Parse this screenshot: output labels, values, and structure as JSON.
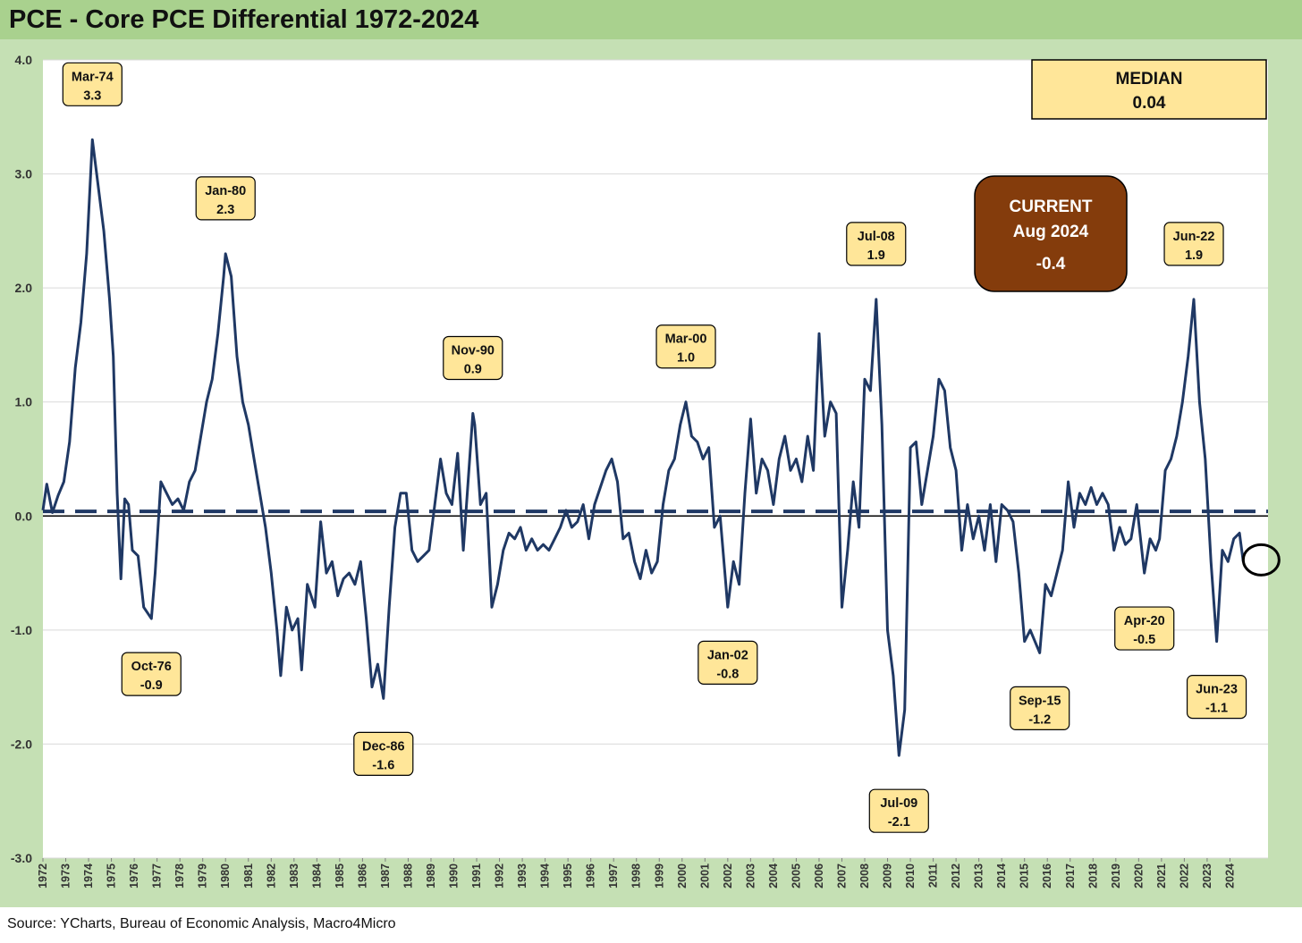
{
  "title": "PCE - Core PCE Differential 1972-2024",
  "source": "Source: YCharts, Bureau of Economic Analysis, Macro4Micro",
  "colors": {
    "series": "#1f3864",
    "title_band": "#a9d18e",
    "frame": "#c5e0b4",
    "callout_fill": "#ffe699",
    "current_fill": "#843c0c"
  },
  "median_box": {
    "label": "MEDIAN",
    "value": "0.04"
  },
  "current_box": {
    "label": "CURRENT",
    "period": "Aug 2024",
    "value": "-0.4"
  },
  "chart_data": {
    "type": "line",
    "title": "PCE - Core PCE Differential 1972-2024",
    "xlabel": "",
    "ylabel": "",
    "ylim": [
      -3.0,
      4.0
    ],
    "yticks": [
      "4.0",
      "3.0",
      "2.0",
      "1.0",
      "0.0",
      "-1.0",
      "-2.0",
      "-3.0"
    ],
    "xticks": [
      "1972",
      "1973",
      "1974",
      "1975",
      "1976",
      "1977",
      "1978",
      "1979",
      "1980",
      "1981",
      "1982",
      "1983",
      "1984",
      "1985",
      "1986",
      "1987",
      "1988",
      "1989",
      "1990",
      "1991",
      "1992",
      "1993",
      "1994",
      "1995",
      "1996",
      "1997",
      "1998",
      "1999",
      "2000",
      "2001",
      "2002",
      "2003",
      "2004",
      "2005",
      "2006",
      "2007",
      "2008",
      "2009",
      "2010",
      "2011",
      "2012",
      "2013",
      "2014",
      "2015",
      "2016",
      "2017",
      "2018",
      "2019",
      "2020",
      "2021",
      "2022",
      "2023",
      "2024"
    ],
    "grid": true,
    "median": 0.04,
    "series": [
      {
        "name": "",
        "points": [
          [
            "1972-01",
            0.05
          ],
          [
            "1972-03",
            0.28
          ],
          [
            "1972-06",
            0.03
          ],
          [
            "1972-09",
            0.18
          ],
          [
            "1972-12",
            0.3
          ],
          [
            "1973-03",
            0.65
          ],
          [
            "1973-06",
            1.3
          ],
          [
            "1973-09",
            1.7
          ],
          [
            "1973-12",
            2.3
          ],
          [
            "1974-03",
            3.3
          ],
          [
            "1974-06",
            2.9
          ],
          [
            "1974-09",
            2.5
          ],
          [
            "1974-12",
            1.9
          ],
          [
            "1975-02",
            1.4
          ],
          [
            "1975-04",
            0.2
          ],
          [
            "1975-06",
            -0.55
          ],
          [
            "1975-08",
            0.15
          ],
          [
            "1975-10",
            0.1
          ],
          [
            "1975-12",
            -0.3
          ],
          [
            "1976-03",
            -0.35
          ],
          [
            "1976-06",
            -0.8
          ],
          [
            "1976-10",
            -0.9
          ],
          [
            "1976-12",
            -0.5
          ],
          [
            "1977-03",
            0.3
          ],
          [
            "1977-06",
            0.2
          ],
          [
            "1977-09",
            0.1
          ],
          [
            "1977-12",
            0.15
          ],
          [
            "1978-03",
            0.05
          ],
          [
            "1978-06",
            0.3
          ],
          [
            "1978-09",
            0.4
          ],
          [
            "1978-12",
            0.7
          ],
          [
            "1979-03",
            1.0
          ],
          [
            "1979-06",
            1.2
          ],
          [
            "1979-09",
            1.6
          ],
          [
            "1979-12",
            2.1
          ],
          [
            "1980-01",
            2.3
          ],
          [
            "1980-04",
            2.1
          ],
          [
            "1980-07",
            1.4
          ],
          [
            "1980-10",
            1.0
          ],
          [
            "1981-01",
            0.8
          ],
          [
            "1981-04",
            0.5
          ],
          [
            "1981-07",
            0.2
          ],
          [
            "1981-10",
            -0.1
          ],
          [
            "1982-01",
            -0.5
          ],
          [
            "1982-04",
            -1.0
          ],
          [
            "1982-06",
            -1.4
          ],
          [
            "1982-09",
            -0.8
          ],
          [
            "1982-12",
            -1.0
          ],
          [
            "1983-03",
            -0.9
          ],
          [
            "1983-05",
            -1.35
          ],
          [
            "1983-08",
            -0.6
          ],
          [
            "1983-12",
            -0.8
          ],
          [
            "1984-03",
            -0.05
          ],
          [
            "1984-06",
            -0.5
          ],
          [
            "1984-09",
            -0.4
          ],
          [
            "1984-12",
            -0.7
          ],
          [
            "1985-03",
            -0.55
          ],
          [
            "1985-06",
            -0.5
          ],
          [
            "1985-09",
            -0.6
          ],
          [
            "1985-12",
            -0.4
          ],
          [
            "1986-03",
            -0.9
          ],
          [
            "1986-06",
            -1.5
          ],
          [
            "1986-09",
            -1.3
          ],
          [
            "1986-12",
            -1.6
          ],
          [
            "1987-03",
            -0.8
          ],
          [
            "1987-06",
            -0.1
          ],
          [
            "1987-09",
            0.2
          ],
          [
            "1987-12",
            0.2
          ],
          [
            "1988-03",
            -0.3
          ],
          [
            "1988-06",
            -0.4
          ],
          [
            "1988-09",
            -0.35
          ],
          [
            "1988-12",
            -0.3
          ],
          [
            "1989-03",
            0.1
          ],
          [
            "1989-06",
            0.5
          ],
          [
            "1989-09",
            0.2
          ],
          [
            "1989-12",
            0.1
          ],
          [
            "1990-03",
            0.55
          ],
          [
            "1990-06",
            -0.3
          ],
          [
            "1990-11",
            0.9
          ],
          [
            "1990-12",
            0.8
          ],
          [
            "1991-03",
            0.1
          ],
          [
            "1991-06",
            0.2
          ],
          [
            "1991-09",
            -0.8
          ],
          [
            "1991-12",
            -0.6
          ],
          [
            "1992-03",
            -0.3
          ],
          [
            "1992-06",
            -0.15
          ],
          [
            "1992-09",
            -0.2
          ],
          [
            "1992-12",
            -0.1
          ],
          [
            "1993-03",
            -0.3
          ],
          [
            "1993-06",
            -0.2
          ],
          [
            "1993-09",
            -0.3
          ],
          [
            "1993-12",
            -0.25
          ],
          [
            "1994-03",
            -0.3
          ],
          [
            "1994-06",
            -0.2
          ],
          [
            "1994-09",
            -0.1
          ],
          [
            "1994-12",
            0.05
          ],
          [
            "1995-03",
            -0.1
          ],
          [
            "1995-06",
            -0.05
          ],
          [
            "1995-09",
            0.1
          ],
          [
            "1995-12",
            -0.2
          ],
          [
            "1996-03",
            0.1
          ],
          [
            "1996-06",
            0.25
          ],
          [
            "1996-09",
            0.4
          ],
          [
            "1996-12",
            0.5
          ],
          [
            "1997-03",
            0.3
          ],
          [
            "1997-06",
            -0.2
          ],
          [
            "1997-09",
            -0.15
          ],
          [
            "1997-12",
            -0.4
          ],
          [
            "1998-03",
            -0.55
          ],
          [
            "1998-06",
            -0.3
          ],
          [
            "1998-09",
            -0.5
          ],
          [
            "1998-12",
            -0.4
          ],
          [
            "1999-03",
            0.1
          ],
          [
            "1999-06",
            0.4
          ],
          [
            "1999-09",
            0.5
          ],
          [
            "1999-12",
            0.8
          ],
          [
            "2000-03",
            1.0
          ],
          [
            "2000-06",
            0.7
          ],
          [
            "2000-09",
            0.65
          ],
          [
            "2000-12",
            0.5
          ],
          [
            "2001-03",
            0.6
          ],
          [
            "2001-06",
            -0.1
          ],
          [
            "2001-09",
            0.0
          ],
          [
            "2001-12",
            -0.6
          ],
          [
            "2002-01",
            -0.8
          ],
          [
            "2002-04",
            -0.4
          ],
          [
            "2002-07",
            -0.6
          ],
          [
            "2002-10",
            0.2
          ],
          [
            "2003-01",
            0.85
          ],
          [
            "2003-04",
            0.2
          ],
          [
            "2003-07",
            0.5
          ],
          [
            "2003-10",
            0.4
          ],
          [
            "2004-01",
            0.1
          ],
          [
            "2004-04",
            0.5
          ],
          [
            "2004-07",
            0.7
          ],
          [
            "2004-10",
            0.4
          ],
          [
            "2005-01",
            0.5
          ],
          [
            "2005-04",
            0.3
          ],
          [
            "2005-07",
            0.7
          ],
          [
            "2005-10",
            0.4
          ],
          [
            "2006-01",
            1.6
          ],
          [
            "2006-04",
            0.7
          ],
          [
            "2006-07",
            1.0
          ],
          [
            "2006-10",
            0.9
          ],
          [
            "2007-01",
            -0.8
          ],
          [
            "2007-04",
            -0.3
          ],
          [
            "2007-07",
            0.3
          ],
          [
            "2007-10",
            -0.1
          ],
          [
            "2008-01",
            1.2
          ],
          [
            "2008-04",
            1.1
          ],
          [
            "2008-07",
            1.9
          ],
          [
            "2008-10",
            0.8
          ],
          [
            "2009-01",
            -1.0
          ],
          [
            "2009-04",
            -1.4
          ],
          [
            "2009-07",
            -2.1
          ],
          [
            "2009-10",
            -1.7
          ],
          [
            "2010-01",
            0.6
          ],
          [
            "2010-04",
            0.65
          ],
          [
            "2010-07",
            0.1
          ],
          [
            "2010-10",
            0.4
          ],
          [
            "2011-01",
            0.7
          ],
          [
            "2011-04",
            1.2
          ],
          [
            "2011-07",
            1.1
          ],
          [
            "2011-10",
            0.6
          ],
          [
            "2012-01",
            0.4
          ],
          [
            "2012-04",
            -0.3
          ],
          [
            "2012-07",
            0.1
          ],
          [
            "2012-10",
            -0.2
          ],
          [
            "2013-01",
            0.0
          ],
          [
            "2013-04",
            -0.3
          ],
          [
            "2013-07",
            0.1
          ],
          [
            "2013-10",
            -0.4
          ],
          [
            "2014-01",
            0.1
          ],
          [
            "2014-04",
            0.05
          ],
          [
            "2014-07",
            -0.05
          ],
          [
            "2014-10",
            -0.5
          ],
          [
            "2015-01",
            -1.1
          ],
          [
            "2015-04",
            -1.0
          ],
          [
            "2015-09",
            -1.2
          ],
          [
            "2015-12",
            -0.6
          ],
          [
            "2016-03",
            -0.7
          ],
          [
            "2016-06",
            -0.5
          ],
          [
            "2016-09",
            -0.3
          ],
          [
            "2016-12",
            0.3
          ],
          [
            "2017-03",
            -0.1
          ],
          [
            "2017-06",
            0.2
          ],
          [
            "2017-09",
            0.1
          ],
          [
            "2017-12",
            0.25
          ],
          [
            "2018-03",
            0.1
          ],
          [
            "2018-06",
            0.2
          ],
          [
            "2018-09",
            0.1
          ],
          [
            "2018-12",
            -0.3
          ],
          [
            "2019-03",
            -0.1
          ],
          [
            "2019-06",
            -0.25
          ],
          [
            "2019-09",
            -0.2
          ],
          [
            "2019-12",
            0.1
          ],
          [
            "2020-04",
            -0.5
          ],
          [
            "2020-07",
            -0.2
          ],
          [
            "2020-10",
            -0.3
          ],
          [
            "2020-12",
            -0.2
          ],
          [
            "2021-03",
            0.4
          ],
          [
            "2021-06",
            0.5
          ],
          [
            "2021-09",
            0.7
          ],
          [
            "2021-12",
            1.0
          ],
          [
            "2022-03",
            1.4
          ],
          [
            "2022-06",
            1.9
          ],
          [
            "2022-09",
            1.0
          ],
          [
            "2022-12",
            0.5
          ],
          [
            "2023-03",
            -0.4
          ],
          [
            "2023-06",
            -1.1
          ],
          [
            "2023-09",
            -0.3
          ],
          [
            "2023-12",
            -0.4
          ],
          [
            "2024-03",
            -0.2
          ],
          [
            "2024-06",
            -0.15
          ],
          [
            "2024-08",
            -0.4
          ]
        ]
      }
    ],
    "annotations": [
      {
        "label": "Mar-74",
        "value": "3.3",
        "x": "1974-03",
        "position": "above"
      },
      {
        "label": "Oct-76",
        "value": "-0.9",
        "x": "1976-10",
        "position": "below"
      },
      {
        "label": "Jan-80",
        "value": "2.3",
        "x": "1980-01",
        "position": "above"
      },
      {
        "label": "Dec-86",
        "value": "-1.6",
        "x": "1986-12",
        "position": "below"
      },
      {
        "label": "Nov-90",
        "value": "0.9",
        "x": "1990-11",
        "position": "above"
      },
      {
        "label": "Mar-00",
        "value": "1.0",
        "x": "2000-03",
        "position": "above"
      },
      {
        "label": "Jan-02",
        "value": "-0.8",
        "x": "2002-01",
        "position": "below"
      },
      {
        "label": "Jul-08",
        "value": "1.9",
        "x": "2008-07",
        "position": "above"
      },
      {
        "label": "Jul-09",
        "value": "-2.1",
        "x": "2009-07",
        "position": "below"
      },
      {
        "label": "Sep-15",
        "value": "-1.2",
        "x": "2015-09",
        "position": "below"
      },
      {
        "label": "Apr-20",
        "value": "-0.5",
        "x": "2020-04",
        "position": "below"
      },
      {
        "label": "Jun-22",
        "value": "1.9",
        "x": "2022-06",
        "position": "above"
      },
      {
        "label": "Jun-23",
        "value": "-1.1",
        "x": "2023-06",
        "position": "below"
      }
    ]
  }
}
